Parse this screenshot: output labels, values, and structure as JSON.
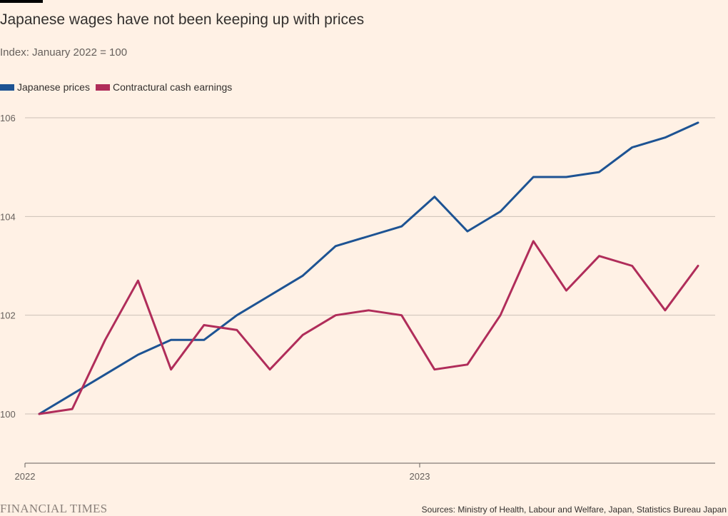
{
  "header": {
    "title": "Japanese wages have not been keeping up with prices",
    "subtitle": "Index: January 2022 = 100"
  },
  "footer": {
    "logo": "FINANCIAL TIMES",
    "source": "Sources: Ministry of Health, Labour and Welfare, Japan, Statistics Bureau Japan"
  },
  "chart_data": {
    "type": "line",
    "title": "Japanese wages have not been keeping up with prices",
    "subtitle": "Index: January 2022 = 100",
    "xlabel": "",
    "ylabel": "",
    "x": [
      "2022-01",
      "2022-02",
      "2022-03",
      "2022-04",
      "2022-05",
      "2022-06",
      "2022-07",
      "2022-08",
      "2022-09",
      "2022-10",
      "2022-11",
      "2022-12",
      "2023-01",
      "2023-02",
      "2023-03",
      "2023-04",
      "2023-05",
      "2023-06",
      "2023-07",
      "2023-08",
      "2023-09"
    ],
    "x_ticks": [
      {
        "label": "2022",
        "at": "2022-01"
      },
      {
        "label": "2023",
        "at": "2023-01"
      }
    ],
    "y_ticks": [
      100,
      102,
      104,
      106
    ],
    "ylim": [
      99,
      106.2
    ],
    "grid": true,
    "legend_placement": "top-left",
    "series": [
      {
        "name": "Japanese prices",
        "color": "#1d5393",
        "values": [
          100.0,
          100.4,
          100.8,
          101.2,
          101.5,
          101.5,
          102.0,
          102.4,
          102.8,
          103.4,
          103.6,
          103.8,
          104.4,
          103.7,
          104.1,
          104.8,
          104.8,
          104.9,
          105.4,
          105.6,
          105.9
        ]
      },
      {
        "name": "Contractural cash earnings",
        "color": "#b02d5a",
        "values": [
          100.0,
          100.1,
          101.5,
          102.7,
          100.9,
          101.8,
          101.7,
          100.9,
          101.6,
          102.0,
          102.1,
          102.0,
          100.9,
          101.0,
          102.0,
          103.5,
          102.5,
          103.2,
          103.0,
          102.1,
          103.0
        ]
      }
    ]
  }
}
